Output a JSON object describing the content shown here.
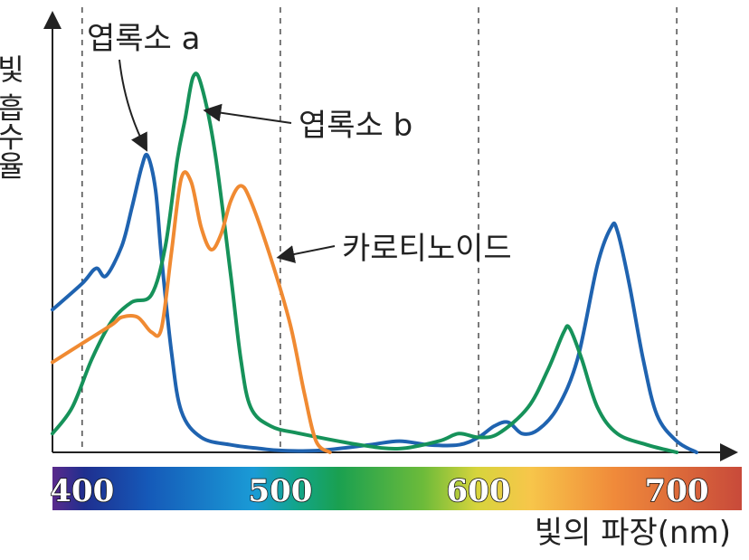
{
  "chart_data": {
    "type": "line",
    "xlabel": "빛의 파장(nm)",
    "ylabel": "빛 흡수율",
    "x_ticks": [
      400,
      500,
      600,
      700
    ],
    "xlim": [
      385,
      710
    ],
    "ylim": [
      0,
      100
    ],
    "grid": "dashed vertical lines at 400, 500, 600, 700",
    "spectrum_bar": {
      "stops": [
        {
          "x": 385,
          "color": "#5a2a8c"
        },
        {
          "x": 400,
          "color": "#1f2f8f"
        },
        {
          "x": 430,
          "color": "#1559b8"
        },
        {
          "x": 480,
          "color": "#1a9bd6"
        },
        {
          "x": 500,
          "color": "#12a58a"
        },
        {
          "x": 520,
          "color": "#1aa050"
        },
        {
          "x": 560,
          "color": "#6dbb3a"
        },
        {
          "x": 585,
          "color": "#d7d43c"
        },
        {
          "x": 610,
          "color": "#f7c64a"
        },
        {
          "x": 650,
          "color": "#f08a3a"
        },
        {
          "x": 710,
          "color": "#c84a3a"
        }
      ]
    },
    "series": [
      {
        "name": "엽록소 a",
        "color": "#1f63b0",
        "points": [
          [
            385,
            38
          ],
          [
            400,
            45
          ],
          [
            407,
            49
          ],
          [
            412,
            47
          ],
          [
            420,
            55
          ],
          [
            425,
            65
          ],
          [
            430,
            76
          ],
          [
            433,
            79
          ],
          [
            437,
            70
          ],
          [
            440,
            52
          ],
          [
            445,
            27
          ],
          [
            450,
            11
          ],
          [
            460,
            4
          ],
          [
            475,
            2
          ],
          [
            490,
            1
          ],
          [
            500,
            0.5
          ],
          [
            520,
            0.5
          ],
          [
            545,
            2
          ],
          [
            560,
            3
          ],
          [
            575,
            2
          ],
          [
            590,
            2
          ],
          [
            600,
            4
          ],
          [
            608,
            7
          ],
          [
            615,
            8
          ],
          [
            622,
            5
          ],
          [
            630,
            6
          ],
          [
            640,
            12
          ],
          [
            650,
            25
          ],
          [
            660,
            50
          ],
          [
            667,
            60
          ],
          [
            670,
            59
          ],
          [
            676,
            45
          ],
          [
            683,
            25
          ],
          [
            690,
            10
          ],
          [
            700,
            3
          ],
          [
            710,
            0
          ]
        ]
      },
      {
        "name": "엽록소 b",
        "color": "#16925a",
        "points": [
          [
            385,
            5
          ],
          [
            395,
            12
          ],
          [
            405,
            25
          ],
          [
            415,
            35
          ],
          [
            425,
            40
          ],
          [
            435,
            42
          ],
          [
            442,
            55
          ],
          [
            448,
            78
          ],
          [
            452,
            89
          ],
          [
            456,
            100
          ],
          [
            460,
            98
          ],
          [
            467,
            80
          ],
          [
            475,
            47
          ],
          [
            480,
            25
          ],
          [
            485,
            12
          ],
          [
            495,
            7
          ],
          [
            510,
            5
          ],
          [
            540,
            2
          ],
          [
            560,
            1
          ],
          [
            580,
            3
          ],
          [
            590,
            5
          ],
          [
            600,
            4
          ],
          [
            610,
            5
          ],
          [
            625,
            12
          ],
          [
            635,
            22
          ],
          [
            643,
            32
          ],
          [
            646,
            33
          ],
          [
            652,
            25
          ],
          [
            660,
            12
          ],
          [
            670,
            5
          ],
          [
            685,
            2
          ],
          [
            700,
            0
          ]
        ]
      },
      {
        "name": "카로티노이드",
        "color": "#f08a32",
        "points": [
          [
            385,
            24
          ],
          [
            400,
            29
          ],
          [
            415,
            34
          ],
          [
            420,
            36
          ],
          [
            428,
            36
          ],
          [
            435,
            32
          ],
          [
            440,
            33
          ],
          [
            445,
            53
          ],
          [
            450,
            73
          ],
          [
            455,
            72
          ],
          [
            460,
            60
          ],
          [
            465,
            54
          ],
          [
            470,
            58
          ],
          [
            475,
            67
          ],
          [
            480,
            71
          ],
          [
            485,
            67
          ],
          [
            495,
            52
          ],
          [
            505,
            34
          ],
          [
            512,
            16
          ],
          [
            518,
            3
          ],
          [
            525,
            0
          ]
        ]
      }
    ],
    "annotations": [
      {
        "text": "엽록소 a",
        "target": [
          433,
          79
        ]
      },
      {
        "text": "엽록소 b",
        "target": [
          460,
          91
        ]
      },
      {
        "text": "카로티노이드",
        "target": [
          497,
          52
        ]
      }
    ]
  }
}
